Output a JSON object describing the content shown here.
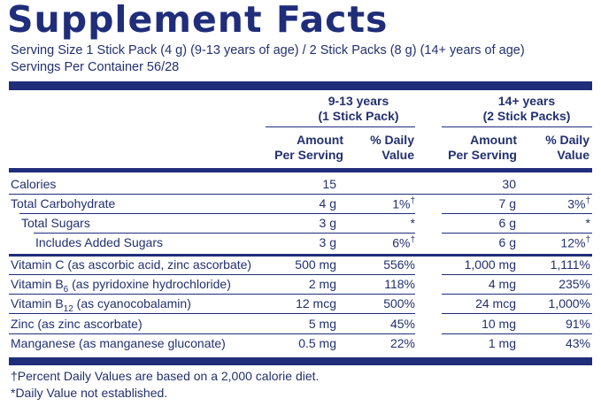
{
  "title": "Supplement Facts",
  "serving_size": "Serving Size 1 Stick Pack (4 g) (9-13 years of age) / 2 Stick Packs (8 g) (14+ years of age)",
  "servings_per_container": "Servings Per Container 56/28",
  "groups": [
    {
      "line1": "9-13 years",
      "line2": "(1 Stick Pack)"
    },
    {
      "line1": "14+ years",
      "line2": "(2 Stick Packs)"
    }
  ],
  "subheads": {
    "amount_1": "Amount",
    "amount_2": "Per Serving",
    "dv_1": "% Daily",
    "dv_2": "Value"
  },
  "rows": [
    {
      "name": "Calories",
      "a1": "15",
      "d1": "",
      "a2": "30",
      "d2": ""
    },
    {
      "name": "Total Carbohydrate",
      "a1": "4 g",
      "d1": "1%†",
      "a2": "7 g",
      "d2": "3%†"
    },
    {
      "name": "Total Sugars",
      "a1": "3 g",
      "d1": "*",
      "a2": "6 g",
      "d2": "*"
    },
    {
      "name": "Includes Added Sugars",
      "a1": "3 g",
      "d1": "6%†",
      "a2": "6 g",
      "d2": "12%†"
    },
    {
      "name": "Vitamin C (as ascorbic acid, zinc ascorbate)",
      "a1": "500 mg",
      "d1": "556%",
      "a2": "1,000 mg",
      "d2": "1,111%"
    },
    {
      "name_pre": "Vitamin B",
      "name_sub": "6",
      "name_post": " (as pyridoxine hydrochloride)",
      "a1": "2 mg",
      "d1": "118%",
      "a2": "4 mg",
      "d2": "235%"
    },
    {
      "name_pre": "Vitamin B",
      "name_sub": "12",
      "name_post": " (as cyanocobalamin)",
      "a1": "12 mcg",
      "d1": "500%",
      "a2": "24 mcg",
      "d2": "1,000%"
    },
    {
      "name": "Zinc (as zinc ascorbate)",
      "a1": "5 mg",
      "d1": "45%",
      "a2": "10 mg",
      "d2": "91%"
    },
    {
      "name": "Manganese (as manganese gluconate)",
      "a1": "0.5 mg",
      "d1": "22%",
      "a2": "1 mg",
      "d2": "43%"
    }
  ],
  "footnotes": {
    "f1": "†Percent Daily Values are based on a 2,000 calorie diet.",
    "f2": "*Daily Value not established."
  }
}
